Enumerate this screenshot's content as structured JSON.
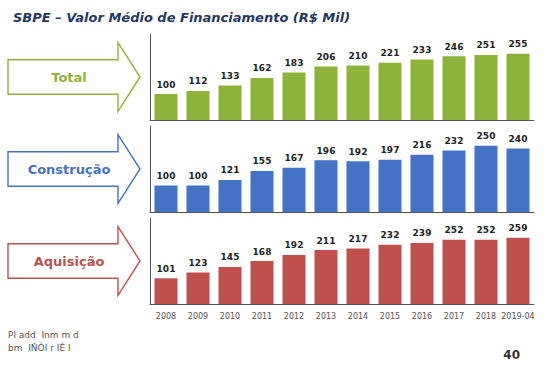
{
  "chart_data": [
    {
      "type": "bar",
      "title": "SBPE – Valor Médio de Financiamento (R$ Mil)",
      "categories": [
        "2008",
        "2009",
        "2010",
        "2011",
        "2012",
        "2013",
        "2014",
        "2015",
        "2016",
        "2017",
        "2018",
        "2019-04"
      ],
      "series": [
        {
          "name": "Total",
          "color": "#8db33a",
          "values": [
            100,
            112,
            133,
            162,
            183,
            206,
            210,
            221,
            233,
            246,
            251,
            255
          ]
        }
      ],
      "ylim": [
        0,
        331.5
      ],
      "grid": false,
      "data_labels": true,
      "tick_labels": false
    },
    {
      "type": "bar",
      "categories": [
        "2008",
        "2009",
        "2010",
        "2011",
        "2012",
        "2013",
        "2014",
        "2015",
        "2016",
        "2017",
        "2018",
        "2019-04"
      ],
      "series": [
        {
          "name": "Construção",
          "color": "#4472c4",
          "values": [
            100,
            100,
            121,
            155,
            167,
            196,
            192,
            197,
            216,
            232,
            250,
            240
          ]
        }
      ],
      "ylim": [
        0,
        325
      ],
      "grid": false,
      "data_labels": true,
      "tick_labels": false
    },
    {
      "type": "bar",
      "categories": [
        "2008",
        "2009",
        "2010",
        "2011",
        "2012",
        "2013",
        "2014",
        "2015",
        "2016",
        "2017",
        "2018",
        "2019-04"
      ],
      "series": [
        {
          "name": "Aquisição",
          "color": "#c0504d",
          "values": [
            101,
            123,
            145,
            168,
            192,
            211,
            217,
            232,
            239,
            252,
            252,
            259
          ]
        }
      ],
      "ylim": [
        0,
        336.7
      ],
      "grid": false,
      "data_labels": true,
      "tick_labels": "x",
      "annotations": [
        "Pl add  Inm m d",
        "bm  IÑÔI r IÈ l",
        "40"
      ]
    }
  ]
}
